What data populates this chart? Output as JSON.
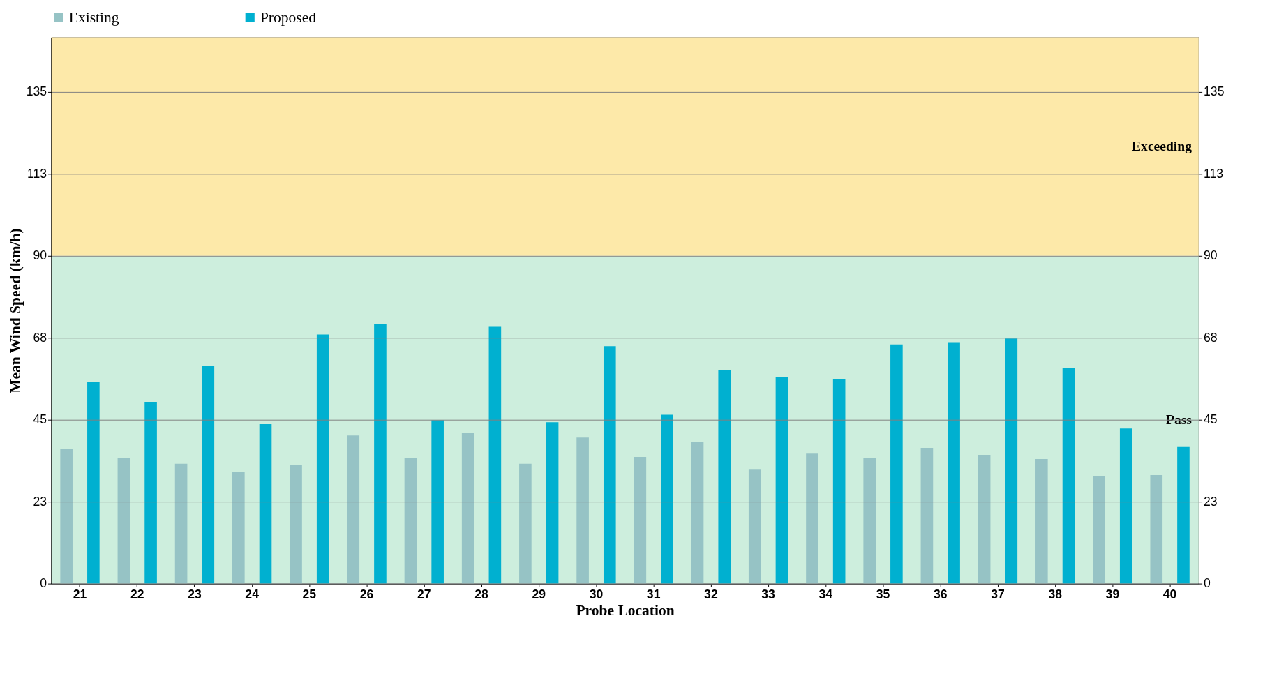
{
  "chart_data": {
    "type": "bar",
    "xlabel": "Probe Location",
    "ylabel": "Mean Wind Speed (km/h)",
    "categories": [
      "21",
      "22",
      "23",
      "24",
      "25",
      "26",
      "27",
      "28",
      "29",
      "30",
      "31",
      "32",
      "33",
      "34",
      "35",
      "36",
      "37",
      "38",
      "39",
      "40"
    ],
    "series": [
      {
        "name": "Existing",
        "color": "#96c3c5",
        "values": [
          37.1,
          34.6,
          32.9,
          30.6,
          32.7,
          40.7,
          34.6,
          41.3,
          32.9,
          40.1,
          34.8,
          38.8,
          31.3,
          35.7,
          34.6,
          37.3,
          35.2,
          34.2,
          29.6,
          29.8
        ]
      },
      {
        "name": "Proposed",
        "color": "#00b0d0",
        "values": [
          55.4,
          49.9,
          59.8,
          43.8,
          68.4,
          71.3,
          44.9,
          70.5,
          44.3,
          65.2,
          46.4,
          58.7,
          56.8,
          56.2,
          65.7,
          66.1,
          67.3,
          59.2,
          42.6,
          37.5
        ]
      }
    ],
    "ylim": [
      0,
      150
    ],
    "yticks": [
      0,
      {
        "value": 22.5,
        "label": "23"
      },
      45,
      {
        "value": 67.5,
        "label": "68"
      },
      90,
      {
        "value": 112.5,
        "label": "113"
      },
      135
    ],
    "y2lim": [
      0,
      150
    ],
    "y2ticks": [
      0,
      {
        "value": 22.5,
        "label": "23"
      },
      45,
      {
        "value": 67.5,
        "label": "68"
      },
      90,
      {
        "value": 112.5,
        "label": "113"
      },
      135
    ],
    "bands": [
      {
        "axis": "y",
        "from": 0,
        "to": 90,
        "label": "Pass",
        "color": "#cdeedd"
      },
      {
        "axis": "y",
        "from": 90,
        "to": 150,
        "label": "Exceeding",
        "color": "#fde9a9"
      }
    ],
    "grid": "y",
    "legend": "top"
  }
}
